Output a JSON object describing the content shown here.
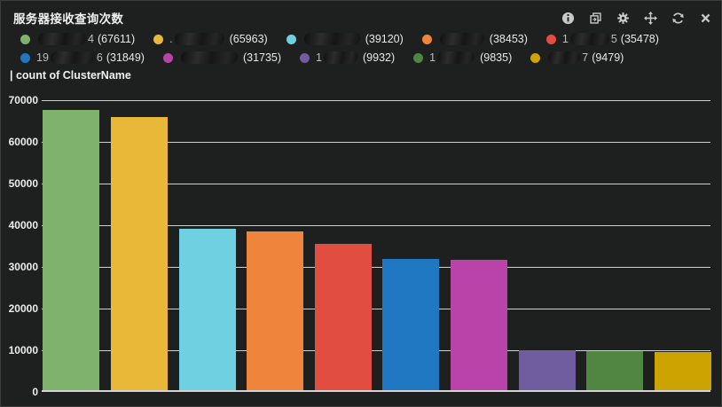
{
  "panel": {
    "title": "服务器接收查询次数",
    "caption": "| count of ClusterName"
  },
  "toolbar": {
    "icons": [
      "info",
      "clone",
      "gear",
      "move",
      "refresh",
      "close"
    ]
  },
  "colors": {
    "background": "#1E1F1F",
    "border": "#3C3C3C",
    "gridline": "#CFCFCF",
    "text": "#E6E6E6",
    "icon": "#C9C9C9"
  },
  "chart_data": {
    "type": "bar",
    "title": "服务器接收查询次数",
    "ylabel": "count of ClusterName",
    "ylim": [
      0,
      70000
    ],
    "yticks": [
      0,
      10000,
      20000,
      30000,
      40000,
      50000,
      60000,
      70000
    ],
    "grid": true,
    "legend_position": "top",
    "bars": [
      {
        "value": 67611,
        "color": "#7EB26D",
        "label_redacted": true,
        "label_visible_prefix": "",
        "label_visible_suffix": "4",
        "redaction_width": 54
      },
      {
        "value": 65963,
        "color": "#EAB839",
        "label_redacted": true,
        "label_visible_prefix": ".",
        "label_visible_suffix": "",
        "redaction_width": 56
      },
      {
        "value": 39120,
        "color": "#6ED0E0",
        "label_redacted": true,
        "label_visible_prefix": "",
        "label_visible_suffix": "",
        "redaction_width": 63
      },
      {
        "value": 38453,
        "color": "#EF843C",
        "label_redacted": true,
        "label_visible_prefix": "",
        "label_visible_suffix": "",
        "redaction_width": 50
      },
      {
        "value": 35478,
        "color": "#E24D42",
        "label_redacted": true,
        "label_visible_prefix": "1",
        "label_visible_suffix": "5",
        "redaction_width": 44
      },
      {
        "value": 31849,
        "color": "#1F78C1",
        "label_redacted": true,
        "label_visible_prefix": "19",
        "label_visible_suffix": "6",
        "redaction_width": 50
      },
      {
        "value": 31735,
        "color": "#BA43A9",
        "label_redacted": true,
        "label_visible_prefix": "",
        "label_visible_suffix": "",
        "redaction_width": 64
      },
      {
        "value": 9932,
        "color": "#705DA0",
        "label_redacted": true,
        "label_visible_prefix": "1",
        "label_visible_suffix": "",
        "redaction_width": 38
      },
      {
        "value": 9835,
        "color": "#508642",
        "label_redacted": true,
        "label_visible_prefix": "1",
        "label_visible_suffix": "",
        "redaction_width": 42
      },
      {
        "value": 9479,
        "color": "#CCA300",
        "label_redacted": true,
        "label_visible_prefix": "",
        "label_visible_suffix": "7",
        "redaction_width": 36
      }
    ]
  }
}
